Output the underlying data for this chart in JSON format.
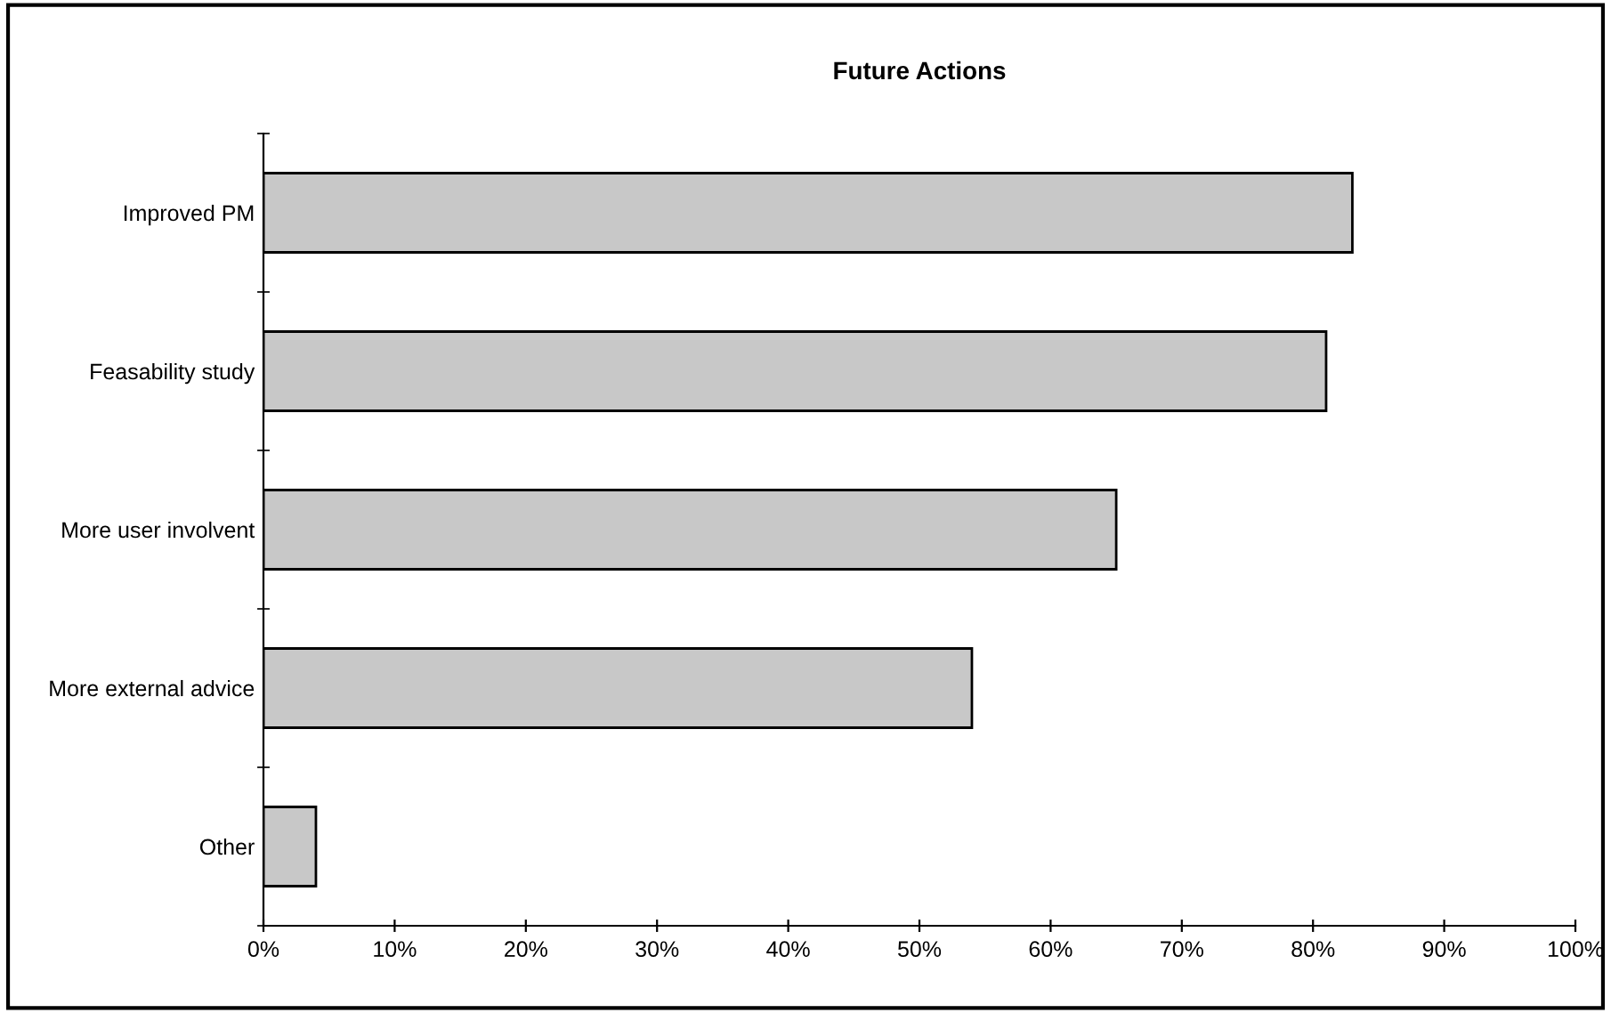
{
  "chart_data": {
    "type": "bar",
    "orientation": "horizontal",
    "title": "Future Actions",
    "categories": [
      "Improved PM",
      "Feasability study",
      "More user involvent",
      "More external advice",
      "Other"
    ],
    "values": [
      83,
      81,
      65,
      54,
      4
    ],
    "color": "#c8c8c8",
    "xlim": [
      0,
      100
    ],
    "xticks": [
      {
        "value": 0,
        "label": "0%"
      },
      {
        "value": 10,
        "label": "10%"
      },
      {
        "value": 20,
        "label": "20%"
      },
      {
        "value": 30,
        "label": "30%"
      },
      {
        "value": 40,
        "label": "40%"
      },
      {
        "value": 50,
        "label": "50%"
      },
      {
        "value": 60,
        "label": "60%"
      },
      {
        "value": 70,
        "label": "70%"
      },
      {
        "value": 80,
        "label": "80%"
      },
      {
        "value": 90,
        "label": "90%"
      },
      {
        "value": 100,
        "label": "100%"
      }
    ],
    "grid": false,
    "legend": false
  }
}
